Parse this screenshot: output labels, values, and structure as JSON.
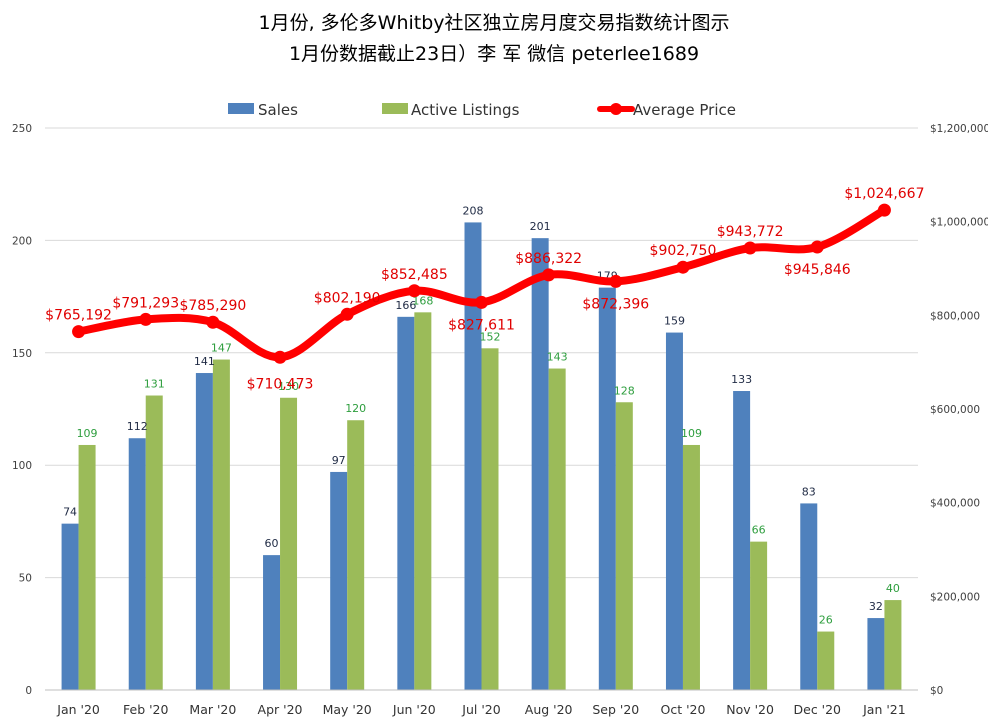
{
  "chart_data": {
    "type": "bar",
    "title": "1月份, 多伦多Whitby社区独立房月度交易指数统计图示",
    "subtitle": "1月份数据截止23日）李 军  微信  peterlee1689",
    "categories": [
      "Jan '20",
      "Feb '20",
      "Mar '20",
      "Apr '20",
      "May '20",
      "Jun '20",
      "Jul '20",
      "Aug '20",
      "Sep '20",
      "Oct '20",
      "Nov '20",
      "Dec '20",
      "Jan '21"
    ],
    "series": [
      {
        "name": "Sales",
        "kind": "bar",
        "axis": "left",
        "color": "#4f81bd",
        "values": [
          74,
          112,
          141,
          60,
          97,
          166,
          208,
          201,
          179,
          159,
          133,
          83,
          32
        ]
      },
      {
        "name": "Active Listings",
        "kind": "bar",
        "axis": "left",
        "color": "#9bbb59",
        "values": [
          109,
          131,
          147,
          130,
          120,
          168,
          152,
          143,
          128,
          109,
          66,
          26,
          40
        ]
      },
      {
        "name": "Average Price",
        "kind": "line",
        "axis": "right",
        "color": "#ff0000",
        "values": [
          765192,
          791293,
          785290,
          710473,
          802190,
          852485,
          827611,
          886322,
          872396,
          902750,
          943772,
          945846,
          1024667
        ],
        "labels": [
          "$765,192",
          "$791,293",
          "$785,290",
          "$710,473",
          "$802,190",
          "$852,485",
          "$827,611",
          "$886,322",
          "$872,396",
          "$902,750",
          "$943,772",
          "$945,846",
          "$1,024,667"
        ]
      }
    ],
    "bar_labels": {
      "sales": [
        "74",
        "112",
        "141",
        "60",
        "97",
        "166",
        "208",
        "201",
        "179",
        "159",
        "133",
        "83",
        "32"
      ],
      "active": [
        "109",
        "131",
        "147",
        "130",
        "120",
        "168",
        "152",
        "143",
        "128",
        "109",
        "66",
        "26",
        "40"
      ]
    },
    "y_left": {
      "lim": [
        0,
        250
      ],
      "ticks": [
        0,
        50,
        100,
        150,
        200,
        250
      ],
      "tick_labels": [
        "0",
        "50",
        "100",
        "150",
        "200",
        "250"
      ]
    },
    "y_right": {
      "lim": [
        0,
        1200000
      ],
      "ticks": [
        0,
        200000,
        400000,
        600000,
        800000,
        1000000,
        1200000
      ],
      "tick_labels": [
        "$0",
        "$200,000",
        "$400,000",
        "$600,000",
        "$800,000",
        "$1,000,000",
        "$1,200,000"
      ]
    },
    "legend": {
      "position": "top",
      "items": [
        "Sales",
        "Active Listings",
        "Average Price"
      ]
    },
    "grid": true,
    "xlabel": "",
    "ylabel": ""
  }
}
